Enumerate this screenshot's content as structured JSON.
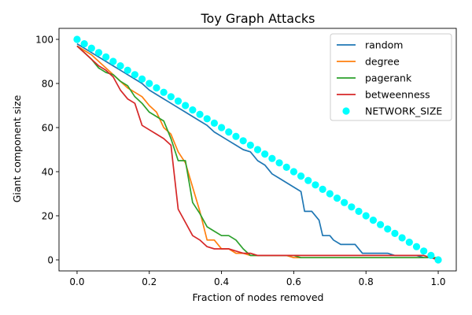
{
  "chart_data": {
    "type": "line",
    "title": "Toy Graph Attacks",
    "xlabel": "Fraction of nodes removed",
    "ylabel": "Giant component size",
    "xlim": [
      -0.05,
      1.05
    ],
    "ylim": [
      -5,
      105
    ],
    "xticks": [
      0.0,
      0.2,
      0.4,
      0.6,
      0.8,
      1.0
    ],
    "xtick_labels": [
      "0.0",
      "0.2",
      "0.4",
      "0.6",
      "0.8",
      "1.0"
    ],
    "yticks": [
      0,
      20,
      40,
      60,
      80,
      100
    ],
    "ytick_labels": [
      "0",
      "20",
      "40",
      "60",
      "80",
      "100"
    ],
    "grid": false,
    "legend_position": "upper right",
    "series": [
      {
        "name": "random",
        "type": "line",
        "color": "#1f77b4",
        "x": [
          0,
          0.02,
          0.04,
          0.06,
          0.08,
          0.1,
          0.12,
          0.14,
          0.16,
          0.18,
          0.2,
          0.22,
          0.24,
          0.26,
          0.28,
          0.3,
          0.32,
          0.34,
          0.36,
          0.38,
          0.4,
          0.42,
          0.44,
          0.46,
          0.48,
          0.5,
          0.52,
          0.54,
          0.56,
          0.58,
          0.6,
          0.62,
          0.63,
          0.65,
          0.67,
          0.68,
          0.7,
          0.71,
          0.73,
          0.75,
          0.77,
          0.79,
          0.81,
          0.83,
          0.84,
          0.86,
          0.88,
          0.9,
          0.92,
          0.94,
          0.96,
          0.98,
          1.0
        ],
        "y": [
          98,
          96,
          94,
          92,
          90,
          88,
          86,
          84,
          82,
          80,
          77,
          75,
          73,
          71,
          69,
          67,
          65,
          63,
          61,
          58,
          56,
          54,
          52,
          50,
          49,
          45,
          43,
          39,
          37,
          35,
          33,
          31,
          22,
          22,
          18,
          11,
          11,
          9,
          7,
          7,
          7,
          3,
          3,
          3,
          3,
          3,
          2,
          2,
          2,
          2,
          1,
          1,
          0
        ]
      },
      {
        "name": "degree",
        "type": "line",
        "color": "#ff7f0e",
        "x": [
          0,
          0.02,
          0.04,
          0.06,
          0.08,
          0.1,
          0.12,
          0.14,
          0.16,
          0.18,
          0.2,
          0.22,
          0.24,
          0.26,
          0.28,
          0.3,
          0.32,
          0.34,
          0.36,
          0.38,
          0.4,
          0.42,
          0.44,
          0.46,
          0.48,
          0.5,
          0.54,
          0.58,
          0.6,
          0.62,
          0.66,
          0.7,
          0.8,
          0.9,
          1.0
        ],
        "y": [
          97,
          95,
          93,
          90,
          87,
          84,
          81,
          78,
          76,
          74,
          70,
          67,
          60,
          57,
          49,
          44,
          33,
          22,
          9,
          9,
          5,
          5,
          3,
          3,
          2,
          2,
          2,
          2,
          1,
          1,
          1,
          1,
          1,
          1,
          1
        ]
      },
      {
        "name": "pagerank",
        "type": "line",
        "color": "#2ca02c",
        "x": [
          0,
          0.02,
          0.04,
          0.06,
          0.08,
          0.1,
          0.12,
          0.14,
          0.16,
          0.18,
          0.2,
          0.22,
          0.24,
          0.26,
          0.28,
          0.3,
          0.32,
          0.34,
          0.36,
          0.38,
          0.4,
          0.42,
          0.44,
          0.46,
          0.48,
          0.5,
          0.52,
          0.56,
          0.6,
          0.62,
          0.66,
          0.7,
          0.8,
          0.86,
          0.88,
          0.9,
          1.0
        ],
        "y": [
          97,
          94,
          91,
          87,
          85,
          84,
          81,
          79,
          74,
          71,
          67,
          65,
          63,
          55,
          45,
          45,
          26,
          21,
          15,
          13,
          11,
          11,
          9,
          5,
          2,
          2,
          2,
          2,
          2,
          1,
          1,
          1,
          1,
          1,
          1,
          1,
          1
        ]
      },
      {
        "name": "betweenness",
        "type": "line",
        "color": "#d62728",
        "x": [
          0,
          0.02,
          0.04,
          0.06,
          0.08,
          0.1,
          0.12,
          0.14,
          0.16,
          0.18,
          0.2,
          0.22,
          0.24,
          0.26,
          0.28,
          0.3,
          0.32,
          0.34,
          0.36,
          0.38,
          0.4,
          0.42,
          0.44,
          0.46,
          0.48,
          0.5,
          0.52,
          0.56,
          0.6,
          0.7,
          0.8,
          0.9,
          0.96,
          0.98,
          1.0
        ],
        "y": [
          97,
          94,
          91,
          88,
          86,
          83,
          77,
          73,
          71,
          61,
          59,
          57,
          55,
          52,
          23,
          17,
          11,
          9,
          6,
          5,
          5,
          5,
          4,
          3,
          3,
          2,
          2,
          2,
          2,
          2,
          2,
          2,
          2,
          1,
          0
        ]
      },
      {
        "name": "NETWORK_SIZE",
        "type": "scatter",
        "color": "#00ffff",
        "x": [
          0.0,
          0.02,
          0.04,
          0.06,
          0.08,
          0.1,
          0.12,
          0.14,
          0.16,
          0.18,
          0.2,
          0.22,
          0.24,
          0.26,
          0.28,
          0.3,
          0.32,
          0.34,
          0.36,
          0.38,
          0.4,
          0.42,
          0.44,
          0.46,
          0.48,
          0.5,
          0.52,
          0.54,
          0.56,
          0.58,
          0.6,
          0.62,
          0.64,
          0.66,
          0.68,
          0.7,
          0.72,
          0.74,
          0.76,
          0.78,
          0.8,
          0.82,
          0.84,
          0.86,
          0.88,
          0.9,
          0.92,
          0.94,
          0.96,
          0.98,
          1.0
        ],
        "y": [
          100,
          98,
          96,
          94,
          92,
          90,
          88,
          86,
          84,
          82,
          80,
          78,
          76,
          74,
          72,
          70,
          68,
          66,
          64,
          62,
          60,
          58,
          56,
          54,
          52,
          50,
          48,
          46,
          44,
          42,
          40,
          38,
          36,
          34,
          32,
          30,
          28,
          26,
          24,
          22,
          20,
          18,
          16,
          14,
          12,
          10,
          8,
          6,
          4,
          2,
          0
        ]
      }
    ]
  }
}
